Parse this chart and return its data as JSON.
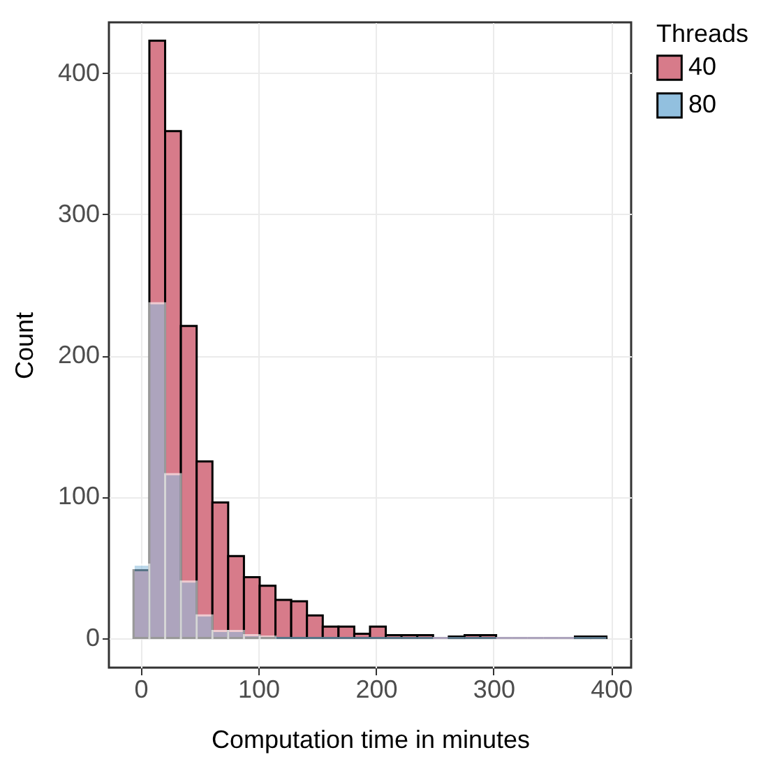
{
  "chart_data": {
    "type": "histogram",
    "xlabel": "Computation time in minutes",
    "ylabel": "Count",
    "legend_title": "Threads",
    "bins": [
      -6,
      7.4,
      20.8,
      34.2,
      47.6,
      61,
      74.4,
      87.8,
      101.2,
      114.6,
      128,
      141.4,
      154.8,
      168.2,
      181.6,
      195,
      208.4,
      221.8,
      235.2,
      248.6,
      262,
      275.4,
      288.8,
      302.2,
      315.6,
      329,
      342.4,
      355.8,
      369.2,
      382.6,
      396
    ],
    "series": [
      {
        "name": "40",
        "color": "#d77b8a",
        "values": [
          48,
          423,
          359,
          221,
          125,
          96,
          58,
          43,
          37,
          27,
          26,
          16,
          8,
          8,
          3,
          8,
          2,
          2,
          2,
          0,
          1,
          2,
          2,
          0,
          0,
          0,
          0,
          0,
          1,
          1
        ]
      },
      {
        "name": "80",
        "color": "#92c0df",
        "values": [
          52,
          237,
          116,
          40,
          16,
          5,
          5,
          2,
          1,
          0,
          0,
          0,
          0,
          0,
          0,
          0,
          0,
          0,
          0,
          0,
          0,
          0,
          0,
          0,
          0,
          0,
          0,
          0,
          0,
          0
        ]
      }
    ],
    "xlim": [
      -27,
      417
    ],
    "ylim": [
      -21,
      436
    ],
    "xticks": [
      0,
      100,
      200,
      300,
      400
    ],
    "yticks": [
      0,
      100,
      200,
      300,
      400
    ],
    "grid": true,
    "legend": "right"
  }
}
